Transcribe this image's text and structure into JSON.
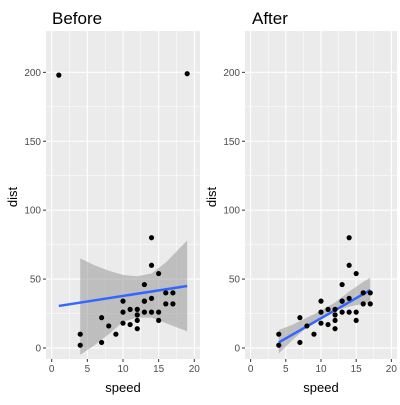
{
  "chart_data": [
    {
      "type": "scatter",
      "title": "Before",
      "xlabel": "speed",
      "ylabel": "dist",
      "xlim": [
        -0.8,
        20.8
      ],
      "ylim": [
        -8,
        230
      ],
      "xticks": [
        0,
        5,
        10,
        15,
        20
      ],
      "yticks": [
        0,
        50,
        100,
        150,
        200
      ],
      "grid": true,
      "points": [
        {
          "x": 1,
          "y": 198
        },
        {
          "x": 19,
          "y": 199
        },
        {
          "x": 4,
          "y": 2
        },
        {
          "x": 4,
          "y": 10
        },
        {
          "x": 7,
          "y": 4
        },
        {
          "x": 7,
          "y": 22
        },
        {
          "x": 8,
          "y": 16
        },
        {
          "x": 9,
          "y": 10
        },
        {
          "x": 10,
          "y": 18
        },
        {
          "x": 10,
          "y": 26
        },
        {
          "x": 10,
          "y": 34
        },
        {
          "x": 11,
          "y": 17
        },
        {
          "x": 11,
          "y": 28
        },
        {
          "x": 12,
          "y": 14
        },
        {
          "x": 12,
          "y": 20
        },
        {
          "x": 12,
          "y": 24
        },
        {
          "x": 12,
          "y": 28
        },
        {
          "x": 13,
          "y": 26
        },
        {
          "x": 13,
          "y": 34
        },
        {
          "x": 13,
          "y": 34
        },
        {
          "x": 13,
          "y": 46
        },
        {
          "x": 14,
          "y": 26
        },
        {
          "x": 14,
          "y": 36
        },
        {
          "x": 14,
          "y": 60
        },
        {
          "x": 14,
          "y": 80
        },
        {
          "x": 15,
          "y": 20
        },
        {
          "x": 15,
          "y": 26
        },
        {
          "x": 15,
          "y": 54
        },
        {
          "x": 16,
          "y": 32
        },
        {
          "x": 16,
          "y": 40
        },
        {
          "x": 17,
          "y": 32
        },
        {
          "x": 17,
          "y": 40
        }
      ],
      "fit": {
        "x": [
          1,
          19
        ],
        "y": [
          30.5,
          45
        ]
      },
      "band": {
        "x": [
          4,
          6,
          8,
          10,
          12,
          14,
          16,
          19
        ],
        "lower": [
          -5,
          2,
          10,
          19,
          22,
          22,
          18,
          12
        ],
        "upper": [
          65,
          60,
          56,
          53,
          52,
          54,
          62,
          78
        ]
      },
      "colors": {
        "points": "#000000",
        "fit": "#3366ff",
        "band": "#999999",
        "panel": "#ebebeb",
        "grid": "#ffffff"
      }
    },
    {
      "type": "scatter",
      "title": "After",
      "xlabel": "speed",
      "ylabel": "dist",
      "xlim": [
        -0.8,
        20.8
      ],
      "ylim": [
        -8,
        230
      ],
      "xticks": [
        0,
        5,
        10,
        15,
        20
      ],
      "yticks": [
        0,
        50,
        100,
        150,
        200
      ],
      "grid": true,
      "points": [
        {
          "x": 4,
          "y": 2
        },
        {
          "x": 4,
          "y": 10
        },
        {
          "x": 7,
          "y": 4
        },
        {
          "x": 7,
          "y": 22
        },
        {
          "x": 8,
          "y": 16
        },
        {
          "x": 9,
          "y": 10
        },
        {
          "x": 10,
          "y": 18
        },
        {
          "x": 10,
          "y": 26
        },
        {
          "x": 10,
          "y": 34
        },
        {
          "x": 11,
          "y": 17
        },
        {
          "x": 11,
          "y": 28
        },
        {
          "x": 12,
          "y": 14
        },
        {
          "x": 12,
          "y": 20
        },
        {
          "x": 12,
          "y": 24
        },
        {
          "x": 12,
          "y": 28
        },
        {
          "x": 13,
          "y": 26
        },
        {
          "x": 13,
          "y": 34
        },
        {
          "x": 13,
          "y": 34
        },
        {
          "x": 13,
          "y": 46
        },
        {
          "x": 14,
          "y": 26
        },
        {
          "x": 14,
          "y": 36
        },
        {
          "x": 14,
          "y": 60
        },
        {
          "x": 14,
          "y": 80
        },
        {
          "x": 15,
          "y": 20
        },
        {
          "x": 15,
          "y": 26
        },
        {
          "x": 15,
          "y": 54
        },
        {
          "x": 16,
          "y": 32
        },
        {
          "x": 16,
          "y": 40
        },
        {
          "x": 17,
          "y": 32
        },
        {
          "x": 17,
          "y": 40
        }
      ],
      "fit": {
        "x": [
          4,
          17
        ],
        "y": [
          4,
          42
        ]
      },
      "band": {
        "x": [
          4,
          6,
          8,
          10,
          12,
          14,
          16,
          17
        ],
        "lower": [
          -4,
          6,
          15,
          22,
          27,
          30,
          32,
          33
        ],
        "upper": [
          13,
          17,
          22,
          27,
          33,
          41,
          48,
          51
        ]
      },
      "colors": {
        "points": "#000000",
        "fit": "#3366ff",
        "band": "#999999",
        "panel": "#ebebeb",
        "grid": "#ffffff"
      }
    }
  ]
}
